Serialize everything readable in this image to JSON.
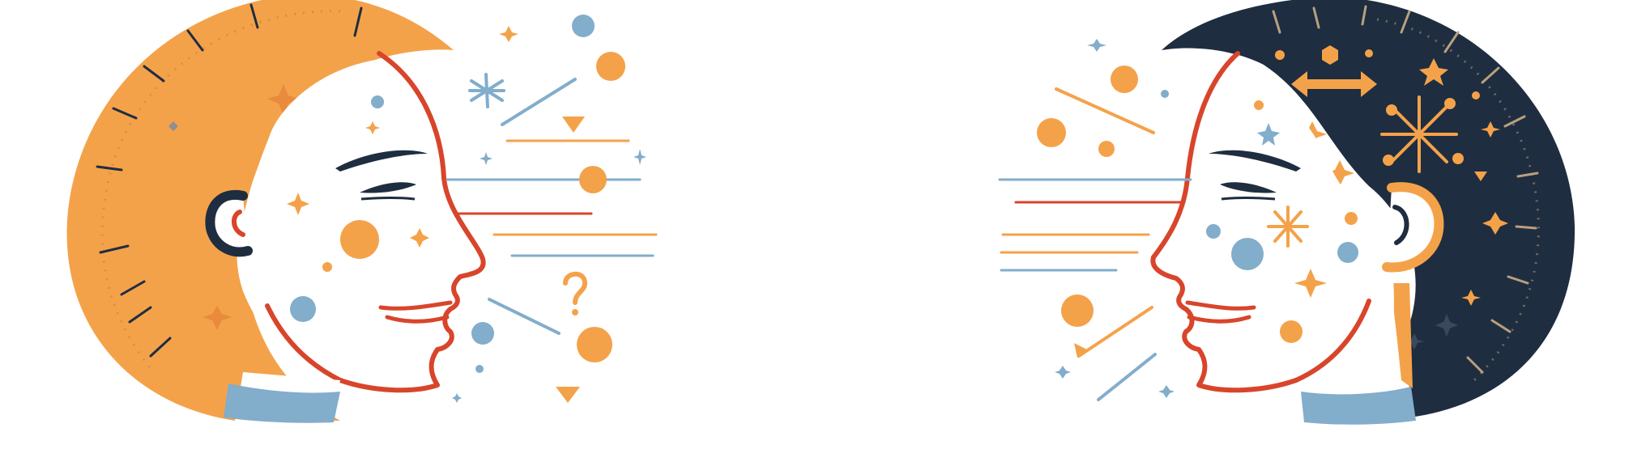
{
  "illustration": {
    "left_figure": {
      "name": "left-head-orange",
      "ear_accent_symbol": "?",
      "motifs": [
        "clock-ticks",
        "sparkles",
        "dots",
        "speed-lines",
        "question-mark",
        "triangles"
      ]
    },
    "right_figure": {
      "name": "right-head-navy",
      "motifs": [
        "clock-ticks",
        "sparkles",
        "dots",
        "speed-lines",
        "double-arrow",
        "asterisk-burst",
        "hexagon"
      ]
    }
  },
  "palette": {
    "orange": "#F4A24A",
    "navy": "#1F2D40",
    "red": "#D8452B",
    "blue": "#82ADCB",
    "white": "#FFFFFF",
    "dark_line": "#1F2D40"
  },
  "icons": [
    "sparkle-icon",
    "star-icon",
    "asterisk-icon",
    "question-mark-icon",
    "triangle-icon",
    "double-arrow-icon",
    "hexagon-icon"
  ]
}
